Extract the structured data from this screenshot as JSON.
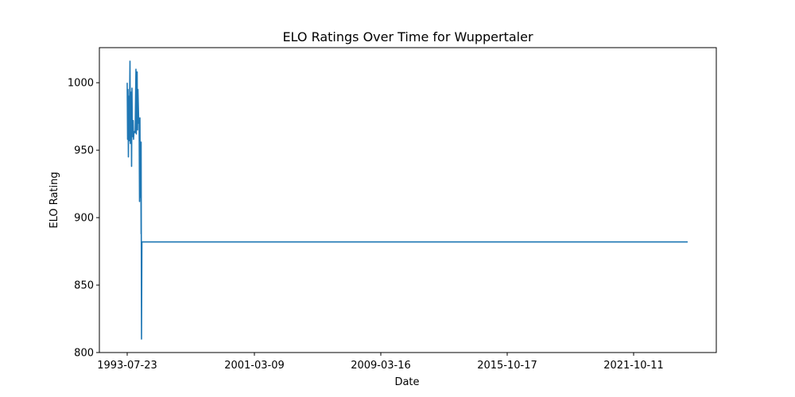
{
  "chart_data": {
    "type": "line",
    "title": "ELO Ratings Over Time for Wuppertaler",
    "xlabel": "Date",
    "ylabel": "ELO Rating",
    "x_ticks": [
      "1993-07-23",
      "2001-03-09",
      "2009-03-16",
      "2015-10-17",
      "2021-10-11"
    ],
    "y_ticks": [
      800,
      850,
      900,
      950,
      1000
    ],
    "ylim": [
      800,
      1026
    ],
    "grid": false,
    "legend": "none",
    "color": "#1f77b4",
    "series": [
      {
        "values": [
          1000,
          958,
          995,
          945,
          990,
          957,
          1016,
          955,
          993,
          938,
          996,
          960,
          972,
          958,
          963,
          964,
          963,
          1010,
          962,
          1008,
          965,
          995,
          970,
          972,
          912,
          974,
          915,
          955,
          888,
          956,
          810,
          882,
          882
        ]
      }
    ]
  }
}
